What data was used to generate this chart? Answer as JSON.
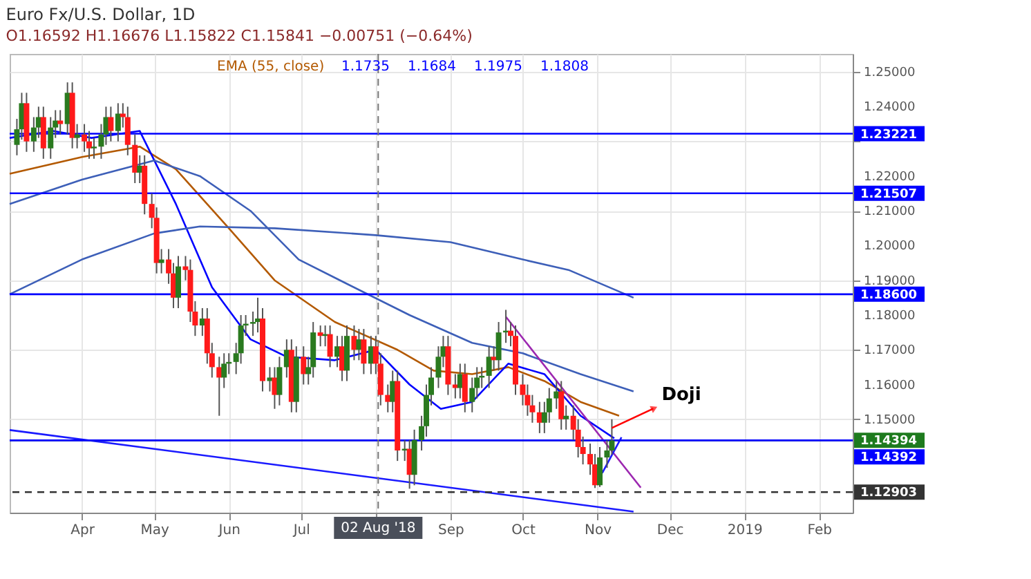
{
  "chart_data": {
    "type": "candlestick",
    "title": "Euro Fx/U.S. Dollar, 1D",
    "subtitle": "O1.16592 H1.16676 L1.15822 C1.15841 −0.00751 (−0.64%)",
    "x": [
      "2018-03-05",
      "2018-03-07",
      "2018-03-09",
      "2018-03-12",
      "2018-03-14",
      "2018-03-16",
      "2018-03-19",
      "2018-03-21",
      "2018-03-23",
      "2018-03-26",
      "2018-03-28",
      "2018-03-30",
      "2018-04-02",
      "2018-04-04",
      "2018-04-06",
      "2018-04-09",
      "2018-04-11",
      "2018-04-13",
      "2018-04-16",
      "2018-04-18",
      "2018-04-20",
      "2018-04-23",
      "2018-04-25",
      "2018-04-27",
      "2018-04-30",
      "2018-05-02",
      "2018-05-04",
      "2018-05-07",
      "2018-05-09",
      "2018-05-11",
      "2018-05-14",
      "2018-05-16",
      "2018-05-18",
      "2018-05-21",
      "2018-05-23",
      "2018-05-25",
      "2018-05-28",
      "2018-05-30",
      "2018-06-01",
      "2018-06-04",
      "2018-06-06",
      "2018-06-08",
      "2018-06-11",
      "2018-06-13",
      "2018-06-15",
      "2018-06-18",
      "2018-06-20",
      "2018-06-22",
      "2018-06-25",
      "2018-06-27",
      "2018-06-29",
      "2018-07-02",
      "2018-07-04",
      "2018-07-06",
      "2018-07-09",
      "2018-07-11",
      "2018-07-13",
      "2018-07-16",
      "2018-07-18",
      "2018-07-20",
      "2018-07-23",
      "2018-07-25",
      "2018-07-27",
      "2018-07-30",
      "2018-08-01",
      "2018-08-03",
      "2018-08-06",
      "2018-08-08",
      "2018-08-10",
      "2018-08-13",
      "2018-08-15",
      "2018-08-17",
      "2018-08-20",
      "2018-08-22",
      "2018-08-24",
      "2018-08-27",
      "2018-08-29",
      "2018-08-31",
      "2018-09-03",
      "2018-09-05",
      "2018-09-07",
      "2018-09-10",
      "2018-09-12",
      "2018-09-14",
      "2018-09-17",
      "2018-09-19",
      "2018-09-21",
      "2018-09-24",
      "2018-09-26",
      "2018-09-28",
      "2018-10-01",
      "2018-10-03",
      "2018-10-05",
      "2018-10-08",
      "2018-10-10",
      "2018-10-12",
      "2018-10-15",
      "2018-10-17",
      "2018-10-19",
      "2018-10-22",
      "2018-10-24",
      "2018-10-26",
      "2018-10-29",
      "2018-10-31",
      "2018-11-02",
      "2018-11-05",
      "2018-11-07"
    ],
    "ohlc": [
      [
        1.229,
        1.2365,
        1.226,
        1.2335
      ],
      [
        1.2335,
        1.244,
        1.2305,
        1.241
      ],
      [
        1.241,
        1.244,
        1.227,
        1.23
      ],
      [
        1.23,
        1.237,
        1.227,
        1.234
      ],
      [
        1.234,
        1.24,
        1.231,
        1.237
      ],
      [
        1.237,
        1.24,
        1.225,
        1.228
      ],
      [
        1.228,
        1.237,
        1.225,
        1.234
      ],
      [
        1.234,
        1.239,
        1.231,
        1.236
      ],
      [
        1.236,
        1.239,
        1.232,
        1.235
      ],
      [
        1.235,
        1.247,
        1.232,
        1.244
      ],
      [
        1.244,
        1.247,
        1.228,
        1.231
      ],
      [
        1.231,
        1.235,
        1.228,
        1.232
      ],
      [
        1.232,
        1.235,
        1.227,
        1.23
      ],
      [
        1.23,
        1.233,
        1.225,
        1.228
      ],
      [
        1.228,
        1.231,
        1.225,
        1.2285
      ],
      [
        1.2285,
        1.235,
        1.225,
        1.232
      ],
      [
        1.232,
        1.24,
        1.229,
        1.237
      ],
      [
        1.237,
        1.24,
        1.23,
        1.233
      ],
      [
        1.233,
        1.241,
        1.23,
        1.238
      ],
      [
        1.238,
        1.241,
        1.234,
        1.237
      ],
      [
        1.237,
        1.24,
        1.226,
        1.229
      ],
      [
        1.229,
        1.232,
        1.218,
        1.221
      ],
      [
        1.221,
        1.226,
        1.218,
        1.223
      ],
      [
        1.223,
        1.226,
        1.209,
        1.212
      ],
      [
        1.212,
        1.215,
        1.205,
        1.208
      ],
      [
        1.208,
        1.211,
        1.192,
        1.195
      ],
      [
        1.195,
        1.199,
        1.192,
        1.196
      ],
      [
        1.196,
        1.199,
        1.189,
        1.192
      ],
      [
        1.192,
        1.195,
        1.182,
        1.185
      ],
      [
        1.185,
        1.197,
        1.182,
        1.194
      ],
      [
        1.194,
        1.197,
        1.19,
        1.193
      ],
      [
        1.193,
        1.196,
        1.178,
        1.181
      ],
      [
        1.181,
        1.184,
        1.174,
        1.177
      ],
      [
        1.177,
        1.182,
        1.174,
        1.179
      ],
      [
        1.179,
        1.182,
        1.166,
        1.169
      ],
      [
        1.169,
        1.172,
        1.162,
        1.165
      ],
      [
        1.165,
        1.168,
        1.151,
        1.162
      ],
      [
        1.162,
        1.169,
        1.159,
        1.166
      ],
      [
        1.166,
        1.169,
        1.163,
        1.1665
      ],
      [
        1.1665,
        1.172,
        1.163,
        1.169
      ],
      [
        1.169,
        1.18,
        1.166,
        1.177
      ],
      [
        1.177,
        1.18,
        1.174,
        1.1775
      ],
      [
        1.1775,
        1.181,
        1.174,
        1.178
      ],
      [
        1.178,
        1.185,
        1.175,
        1.179
      ],
      [
        1.179,
        1.182,
        1.158,
        1.161
      ],
      [
        1.161,
        1.165,
        1.158,
        1.162
      ],
      [
        1.162,
        1.165,
        1.153,
        1.157
      ],
      [
        1.157,
        1.168,
        1.154,
        1.165
      ],
      [
        1.165,
        1.173,
        1.162,
        1.17
      ],
      [
        1.17,
        1.173,
        1.152,
        1.155
      ],
      [
        1.155,
        1.171,
        1.152,
        1.168
      ],
      [
        1.168,
        1.171,
        1.16,
        1.163
      ],
      [
        1.163,
        1.168,
        1.16,
        1.165
      ],
      [
        1.165,
        1.178,
        1.162,
        1.175
      ],
      [
        1.175,
        1.177,
        1.171,
        1.174
      ],
      [
        1.174,
        1.177,
        1.171,
        1.1745
      ],
      [
        1.1745,
        1.177,
        1.165,
        1.168
      ],
      [
        1.168,
        1.174,
        1.165,
        1.171
      ],
      [
        1.171,
        1.174,
        1.161,
        1.164
      ],
      [
        1.164,
        1.177,
        1.161,
        1.174
      ],
      [
        1.174,
        1.177,
        1.167,
        1.17
      ],
      [
        1.17,
        1.176,
        1.167,
        1.173
      ],
      [
        1.173,
        1.176,
        1.163,
        1.166
      ],
      [
        1.166,
        1.174,
        1.163,
        1.171
      ],
      [
        1.171,
        1.174,
        1.163,
        1.166
      ],
      [
        1.166,
        1.169,
        1.154,
        1.157
      ],
      [
        1.157,
        1.16,
        1.152,
        1.155
      ],
      [
        1.155,
        1.164,
        1.152,
        1.161
      ],
      [
        1.161,
        1.164,
        1.138,
        1.141
      ],
      [
        1.141,
        1.144,
        1.138,
        1.1415
      ],
      [
        1.1415,
        1.144,
        1.13,
        1.134
      ],
      [
        1.134,
        1.147,
        1.131,
        1.144
      ],
      [
        1.144,
        1.151,
        1.141,
        1.148
      ],
      [
        1.148,
        1.16,
        1.145,
        1.157
      ],
      [
        1.157,
        1.165,
        1.154,
        1.162
      ],
      [
        1.162,
        1.171,
        1.159,
        1.168
      ],
      [
        1.168,
        1.174,
        1.165,
        1.171
      ],
      [
        1.171,
        1.174,
        1.157,
        1.16
      ],
      [
        1.16,
        1.163,
        1.156,
        1.159
      ],
      [
        1.159,
        1.166,
        1.156,
        1.163
      ],
      [
        1.163,
        1.166,
        1.152,
        1.155
      ],
      [
        1.155,
        1.162,
        1.152,
        1.159
      ],
      [
        1.159,
        1.165,
        1.156,
        1.162
      ],
      [
        1.162,
        1.165,
        1.159,
        1.1625
      ],
      [
        1.1625,
        1.171,
        1.159,
        1.168
      ],
      [
        1.168,
        1.171,
        1.164,
        1.167
      ],
      [
        1.167,
        1.178,
        1.164,
        1.175
      ],
      [
        1.175,
        1.1815,
        1.172,
        1.1755
      ],
      [
        1.1755,
        1.178,
        1.171,
        1.174
      ],
      [
        1.174,
        1.177,
        1.157,
        1.16
      ],
      [
        1.16,
        1.163,
        1.154,
        1.157
      ],
      [
        1.157,
        1.16,
        1.151,
        1.154
      ],
      [
        1.154,
        1.157,
        1.149,
        1.152
      ],
      [
        1.152,
        1.155,
        1.146,
        1.149
      ],
      [
        1.149,
        1.155,
        1.146,
        1.152
      ],
      [
        1.152,
        1.159,
        1.149,
        1.156
      ],
      [
        1.156,
        1.161,
        1.153,
        1.158
      ],
      [
        1.158,
        1.161,
        1.147,
        1.15
      ],
      [
        1.15,
        1.154,
        1.147,
        1.151
      ],
      [
        1.151,
        1.154,
        1.144,
        1.147
      ],
      [
        1.147,
        1.15,
        1.139,
        1.142
      ],
      [
        1.142,
        1.145,
        1.137,
        1.14
      ],
      [
        1.14,
        1.143,
        1.134,
        1.137
      ],
      [
        1.137,
        1.14,
        1.1302,
        1.131
      ],
      [
        1.131,
        1.142,
        1.1305,
        1.139
      ],
      [
        1.139,
        1.144,
        1.136,
        1.141
      ],
      [
        1.141,
        1.15,
        1.1398,
        1.1439
      ]
    ],
    "series": [
      {
        "type": "line",
        "color": "#b35900",
        "x": [
          "2018-03-02",
          "2018-04-01",
          "2018-04-25",
          "2018-05-10",
          "2018-06-01",
          "2018-06-20",
          "2018-07-15",
          "2018-08-10",
          "2018-08-25",
          "2018-09-10",
          "2018-09-25",
          "2018-10-10",
          "2018-10-25",
          "2018-11-10"
        ],
        "values": [
          1.2207,
          1.2255,
          1.2285,
          1.222,
          1.205,
          1.19,
          1.178,
          1.17,
          1.164,
          1.163,
          1.165,
          1.161,
          1.155,
          1.151
        ]
      },
      {
        "type": "line",
        "color": "#0000ff",
        "x": [
          "2018-03-02",
          "2018-03-20",
          "2018-04-05",
          "2018-04-25",
          "2018-05-10",
          "2018-05-25",
          "2018-06-10",
          "2018-06-25",
          "2018-07-15",
          "2018-08-01",
          "2018-08-15",
          "2018-08-28",
          "2018-09-10",
          "2018-09-25",
          "2018-10-10",
          "2018-10-25",
          "2018-11-08"
        ],
        "values": [
          1.231,
          1.233,
          1.231,
          1.233,
          1.212,
          1.188,
          1.173,
          1.168,
          1.167,
          1.17,
          1.16,
          1.153,
          1.155,
          1.166,
          1.163,
          1.151,
          1.1445
        ]
      },
      {
        "type": "line",
        "color": "#3d5fb8",
        "x": [
          "2018-03-02",
          "2018-04-01",
          "2018-05-01",
          "2018-05-20",
          "2018-06-10",
          "2018-06-30",
          "2018-07-20",
          "2018-08-15",
          "2018-09-10",
          "2018-10-01",
          "2018-10-25",
          "2018-11-16"
        ],
        "values": [
          1.212,
          1.219,
          1.2245,
          1.22,
          1.21,
          1.196,
          1.189,
          1.18,
          1.172,
          1.169,
          1.163,
          1.158
        ]
      },
      {
        "type": "line",
        "color": "#3d5fb8",
        "x": [
          "2018-03-02",
          "2018-04-01",
          "2018-05-01",
          "2018-05-20",
          "2018-06-20",
          "2018-08-01",
          "2018-09-01",
          "2018-10-01",
          "2018-10-20",
          "2018-11-16"
        ],
        "values": [
          1.186,
          1.196,
          1.2035,
          1.2055,
          1.205,
          1.203,
          1.201,
          1.196,
          1.193,
          1.185
        ]
      },
      {
        "type": "line",
        "color": "#1a1aff",
        "x": [
          "2018-03-02",
          "2018-11-16"
        ],
        "values": [
          1.1469,
          1.1234
        ]
      },
      {
        "type": "line",
        "color": "#9c27b0",
        "x": [
          "2018-09-24",
          "2018-11-19"
        ],
        "values": [
          1.1795,
          1.1303
        ]
      },
      {
        "type": "line",
        "color": "#1a1aff",
        "x": [
          "2018-11-03",
          "2018-11-11"
        ],
        "values": [
          1.1345,
          1.1448
        ]
      }
    ],
    "ref_lines": [
      {
        "axis": "y",
        "value": 1.23221,
        "label": "1.23221",
        "color": "#0000ff"
      },
      {
        "axis": "y",
        "value": 1.21507,
        "label": "1.21507",
        "color": "#0000ff"
      },
      {
        "axis": "y",
        "value": 1.186,
        "label": "1.18600",
        "color": "#0000ff"
      },
      {
        "axis": "y",
        "value": 1.14394,
        "label": "1.14394",
        "color": "#1e7b1e"
      },
      {
        "axis": "y",
        "value": 1.14392,
        "label": "1.14392",
        "color": "#0000ff"
      },
      {
        "axis": "y",
        "value": 1.12903,
        "label": "1.12903",
        "color": "#333333",
        "line_style": "dashed"
      },
      {
        "axis": "x",
        "value": "2018-08-02",
        "label": "02 Aug '18",
        "color": "#777777",
        "line_style": "dashed"
      }
    ],
    "annotations": [
      "EMA (55, close)",
      "1.1735",
      "1.1684",
      "1.1975",
      "1.1808",
      {
        "text": "Doji",
        "x": "2018-11-07",
        "y": 1.1475
      }
    ],
    "xlim": [
      "2018-03-02",
      "2019-02-15"
    ],
    "xticks": [
      {
        "value": "2018-04-01",
        "label": "Apr"
      },
      {
        "value": "2018-05-01",
        "label": "May"
      },
      {
        "value": "2018-06-01",
        "label": "Jun"
      },
      {
        "value": "2018-07-01",
        "label": "Jul"
      },
      {
        "value": "2018-08-01",
        "label": null
      },
      {
        "value": "2018-09-01",
        "label": "Sep"
      },
      {
        "value": "2018-10-01",
        "label": "Oct"
      },
      {
        "value": "2018-11-01",
        "label": "Nov"
      },
      {
        "value": "2018-12-01",
        "label": "Dec"
      },
      {
        "value": "2019-01-01",
        "label": "2019"
      },
      {
        "value": "2019-02-01",
        "label": "Feb"
      }
    ],
    "ylim": [
      1.1231,
      1.2552
    ],
    "yticks": [
      {
        "value": 1.15,
        "label": "1.15000"
      },
      {
        "value": 1.16,
        "label": "1.16000"
      },
      {
        "value": 1.17,
        "label": "1.17000"
      },
      {
        "value": 1.18,
        "label": "1.18000"
      },
      {
        "value": 1.19,
        "label": "1.19000"
      },
      {
        "value": 1.2,
        "label": "1.20000"
      },
      {
        "value": 1.21,
        "label": "1.21000"
      },
      {
        "value": 1.22,
        "label": "1.22000"
      },
      {
        "value": 1.23,
        "label": null
      },
      {
        "value": 1.24,
        "label": "1.24000"
      },
      {
        "value": 1.25,
        "label": "1.25000"
      }
    ],
    "grid": true,
    "legend": false
  }
}
